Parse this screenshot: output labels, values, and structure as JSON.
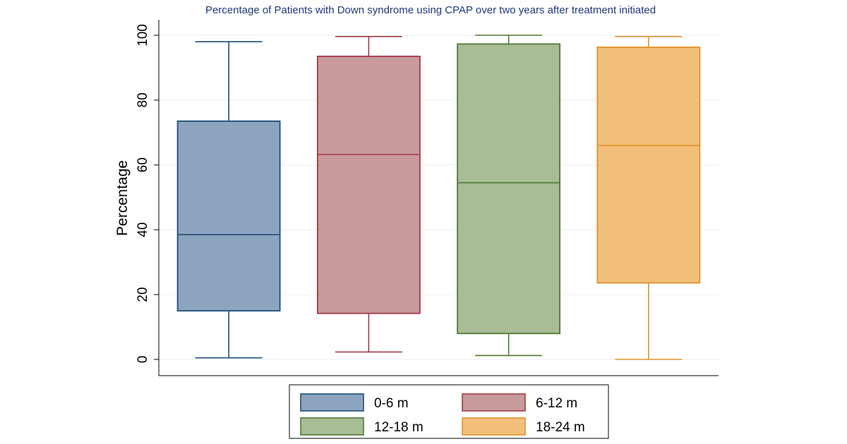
{
  "chart_data": {
    "type": "boxplot",
    "title": "Percentage of Patients with Down syndrome using CPAP over two years after treatment initiated",
    "ylabel": "Percentage",
    "ylim": [
      0,
      100
    ],
    "yticks": [
      0,
      20,
      40,
      60,
      80,
      100
    ],
    "grid": "y-major",
    "legend_position": "bottom",
    "legend_columns": 2,
    "series": [
      {
        "name": "0-6 m",
        "min": 0.5,
        "q1": 15.0,
        "median": 38.5,
        "q3": 73.5,
        "max": 98.0,
        "fill": "#8da4bf",
        "stroke": "#1f4e79"
      },
      {
        "name": "6-12 m",
        "min": 2.3,
        "q1": 14.2,
        "median": 63.2,
        "q3": 93.5,
        "max": 99.6,
        "fill": "#c79a9c",
        "stroke": "#a23a45"
      },
      {
        "name": "12-18 m",
        "min": 1.2,
        "q1": 8.0,
        "median": 54.5,
        "q3": 97.3,
        "max": 100.0,
        "fill": "#a8bc96",
        "stroke": "#4e7a31"
      },
      {
        "name": "18-24 m",
        "min": 0.0,
        "q1": 23.6,
        "median": 66.0,
        "q3": 96.3,
        "max": 99.6,
        "fill": "#f2bf7b",
        "stroke": "#e0922b"
      }
    ]
  }
}
